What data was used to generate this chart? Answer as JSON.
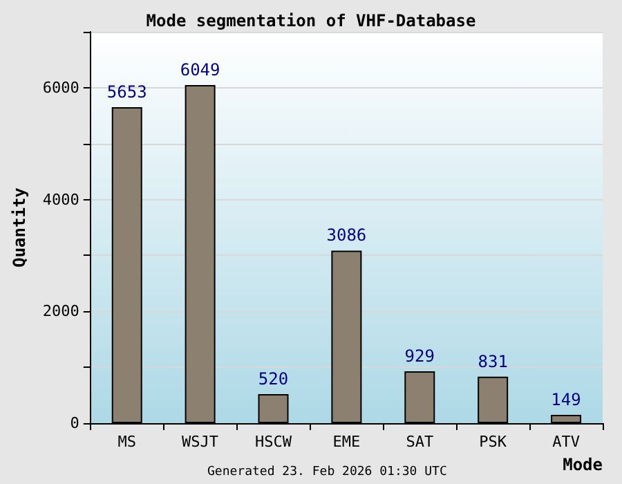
{
  "chart_data": {
    "type": "bar",
    "title": "Mode segmentation of VHF-Database",
    "xlabel": "Mode",
    "ylabel": "Quantity",
    "categories": [
      "MS",
      "WSJT",
      "HSCW",
      "EME",
      "SAT",
      "PSK",
      "ATV"
    ],
    "values": [
      5653,
      6049,
      520,
      3086,
      929,
      831,
      149
    ],
    "color": "#8c8070",
    "ylim": [
      0,
      7000
    ],
    "yticks": [
      0,
      {
        "value": 1000,
        "label": null
      },
      2000,
      {
        "value": 3000,
        "label": null
      },
      4000,
      {
        "value": 5000,
        "label": null
      },
      6000,
      {
        "value": 7000,
        "label": null
      }
    ],
    "grid": "y",
    "data_labels": true,
    "annotations": [
      "Generated 23. Feb 2026 01:30 UTC"
    ]
  }
}
